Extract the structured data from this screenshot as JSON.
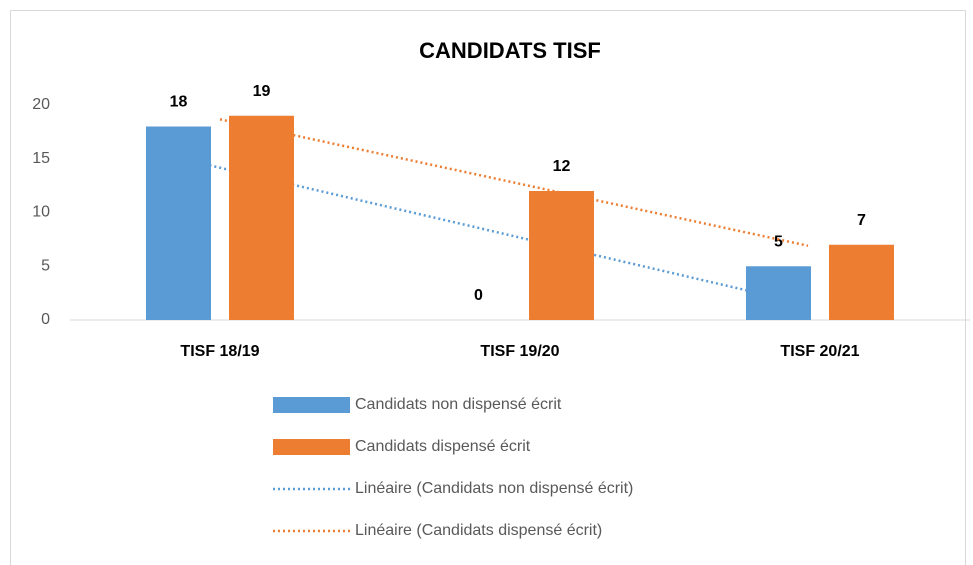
{
  "chart_data": {
    "type": "bar",
    "title": "CANDIDATS TISF",
    "categories": [
      "TISF 18/19",
      "TISF 19/20",
      "TISF 20/21"
    ],
    "series": [
      {
        "name": "Candidats non dispensé écrit",
        "color": "#5b9bd5",
        "values": [
          18,
          0,
          5
        ],
        "trendline": {
          "type": "linear",
          "name": "Linéaire (Candidats non dispensé écrit)"
        }
      },
      {
        "name": "Candidats dispensé écrit",
        "color": "#ed7d31",
        "values": [
          19,
          12,
          7
        ],
        "trendline": {
          "type": "linear",
          "name": "Linéaire (Candidats dispensé écrit)"
        }
      }
    ],
    "ylim": [
      0,
      20
    ],
    "yticks": [
      0,
      5,
      10,
      15,
      20
    ],
    "grid": false,
    "legend": "bottom"
  }
}
